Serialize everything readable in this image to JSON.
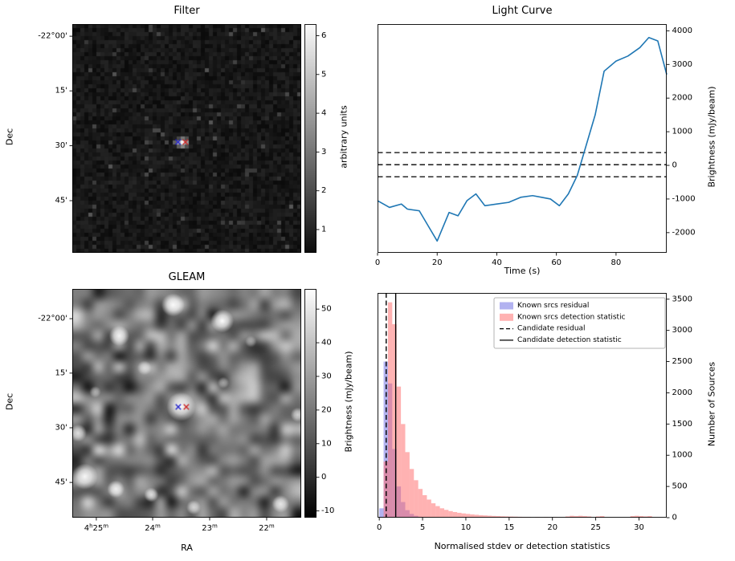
{
  "figure_bg": "#ffffff",
  "chart_data": [
    {
      "type": "heatmap",
      "panel": "top-left",
      "title": "Filter",
      "ylabel": "Dec",
      "yticks": [
        {
          "label": "-22°00'",
          "f": 0.053
        },
        {
          "label": "15'",
          "f": 0.292
        },
        {
          "label": "30'",
          "f": 0.532
        },
        {
          "label": "45'",
          "f": 0.772
        }
      ],
      "colorbar_label": "arbitrary units",
      "colorbar_ticks": [
        1,
        2,
        3,
        4,
        5,
        6
      ],
      "colorbar_range": [
        0.4,
        6.3
      ],
      "cmap": "gray",
      "description": "dark noise map; single compact bright source at image centre",
      "source_blob": {
        "fx": 0.474,
        "fy": 0.513
      },
      "markers": [
        {
          "shape": "x",
          "color": "#2222cc",
          "fx": 0.462,
          "fy": 0.516
        },
        {
          "shape": "x",
          "color": "#cc2222",
          "fx": 0.494,
          "fy": 0.516
        }
      ]
    },
    {
      "type": "line",
      "panel": "top-right",
      "title": "Light Curve",
      "xlabel": "Time (s)",
      "ylabel": "Brightness (mJy/beam)",
      "ylabel_side": "right",
      "xlim": [
        0,
        97
      ],
      "ylim": [
        -2600,
        4200
      ],
      "xticks": [
        0,
        20,
        40,
        60,
        80
      ],
      "yticks": [
        -2000,
        -1000,
        0,
        1000,
        2000,
        3000,
        4000
      ],
      "line_color": "#1f77b4",
      "threshold_lines": {
        "style": "dashed",
        "color": "#000000",
        "values": [
          380,
          20,
          -340
        ]
      },
      "x": [
        0,
        4,
        8,
        10,
        14,
        17,
        20,
        24,
        27,
        30,
        33,
        36,
        40,
        44,
        48,
        52,
        55,
        58,
        61,
        64,
        67,
        70,
        73,
        76,
        80,
        84,
        88,
        91,
        94,
        97
      ],
      "y": [
        -1050,
        -1250,
        -1150,
        -1300,
        -1350,
        -1800,
        -2250,
        -1400,
        -1500,
        -1050,
        -850,
        -1200,
        -1150,
        -1100,
        -950,
        -900,
        -950,
        -1000,
        -1200,
        -850,
        -300,
        600,
        1500,
        2800,
        3100,
        3250,
        3500,
        3800,
        3700,
        2700
      ]
    },
    {
      "type": "heatmap",
      "panel": "bottom-left",
      "title": "GLEAM",
      "xlabel": "RA",
      "ylabel": "Dec",
      "xticks": [
        {
          "label": "4h25m",
          "f": 0.105
        },
        {
          "label": "24m",
          "f": 0.351
        },
        {
          "label": "23m",
          "f": 0.6
        },
        {
          "label": "22m",
          "f": 0.849
        }
      ],
      "yticks": [
        {
          "label": "-22°00'",
          "f": 0.13
        },
        {
          "label": "15'",
          "f": 0.368
        },
        {
          "label": "30'",
          "f": 0.607
        },
        {
          "label": "45'",
          "f": 0.846
        }
      ],
      "colorbar_label": "Brightness (mJy/beam)",
      "colorbar_ticks": [
        -10,
        0,
        10,
        20,
        30,
        40,
        50
      ],
      "colorbar_range": [
        -12,
        56
      ],
      "cmap": "gray",
      "description": "smoothed grey-scale sky map with several bright compact sources; candidate marked at centre",
      "sources": [
        [
          0.475,
          0.515,
          10,
          1.0
        ],
        [
          0.44,
          0.07,
          8,
          0.95
        ],
        [
          0.655,
          0.14,
          8,
          1.0
        ],
        [
          0.205,
          0.205,
          7,
          0.9
        ],
        [
          0.315,
          0.345,
          5,
          0.6
        ],
        [
          0.025,
          0.63,
          6,
          0.8
        ],
        [
          0.055,
          0.82,
          9,
          0.95
        ],
        [
          0.19,
          0.875,
          6,
          0.85
        ],
        [
          0.345,
          0.9,
          5,
          0.8
        ],
        [
          0.53,
          0.955,
          5,
          0.7
        ],
        [
          0.91,
          0.94,
          6,
          0.8
        ],
        [
          0.985,
          0.55,
          5,
          0.7
        ],
        [
          0.66,
          0.41,
          4,
          0.5
        ],
        [
          0.78,
          0.23,
          4,
          0.45
        ],
        [
          0.1,
          0.45,
          4,
          0.5
        ]
      ],
      "markers": [
        {
          "shape": "x",
          "color": "#2222cc",
          "fx": 0.463,
          "fy": 0.516
        },
        {
          "shape": "x",
          "color": "#cc2222",
          "fx": 0.498,
          "fy": 0.516
        }
      ]
    },
    {
      "type": "histogram",
      "panel": "bottom-right",
      "xlabel": "Normalised stdev or detection statistics",
      "ylabel": "Number of Sources",
      "ylabel_side": "right",
      "xlim": [
        -0.2,
        33.2
      ],
      "ylim": [
        0,
        3600
      ],
      "xticks": [
        0,
        5,
        10,
        15,
        20,
        25,
        30
      ],
      "yticks": [
        0,
        500,
        1000,
        1500,
        2000,
        2500,
        3000,
        3500
      ],
      "bin_width": 0.5,
      "bin_start": 0,
      "series": [
        {
          "name": "Known srcs residual",
          "color": "#5555dd",
          "alpha": 0.45,
          "counts": [
            150,
            2500,
            2150,
            1100,
            500,
            250,
            120,
            60,
            30,
            15,
            8,
            4,
            0,
            0,
            0,
            0,
            0,
            0,
            0,
            0,
            0,
            0,
            0,
            0,
            0,
            0,
            0,
            0,
            0,
            0,
            0,
            0,
            0,
            0,
            0,
            0,
            0,
            0,
            0,
            0,
            0,
            0,
            0,
            0,
            0,
            0,
            0,
            0,
            0,
            0,
            0,
            0,
            0,
            0,
            0,
            0,
            0,
            0,
            0,
            0,
            0,
            0,
            0,
            0,
            0,
            0
          ]
        },
        {
          "name": "Known srcs detection statistic",
          "color": "#ff6666",
          "alpha": 0.5,
          "counts": [
            0,
            900,
            3450,
            3100,
            2100,
            1500,
            1050,
            780,
            600,
            460,
            360,
            290,
            230,
            185,
            150,
            125,
            105,
            90,
            78,
            68,
            60,
            52,
            46,
            40,
            36,
            32,
            28,
            25,
            22,
            20,
            18,
            16,
            14,
            12,
            10,
            0,
            8,
            0,
            6,
            0,
            5,
            0,
            0,
            20,
            30,
            25,
            30,
            25,
            20,
            0,
            20,
            25,
            0,
            0,
            0,
            0,
            0,
            0,
            25,
            30,
            25,
            20,
            25,
            0,
            0,
            0
          ]
        }
      ],
      "vlines": [
        {
          "name": "Candidate residual",
          "style": "dashed",
          "color": "#000000",
          "x": 0.8
        },
        {
          "name": "Candidate detection statistic",
          "style": "solid",
          "color": "#000000",
          "x": 1.9
        }
      ]
    }
  ]
}
